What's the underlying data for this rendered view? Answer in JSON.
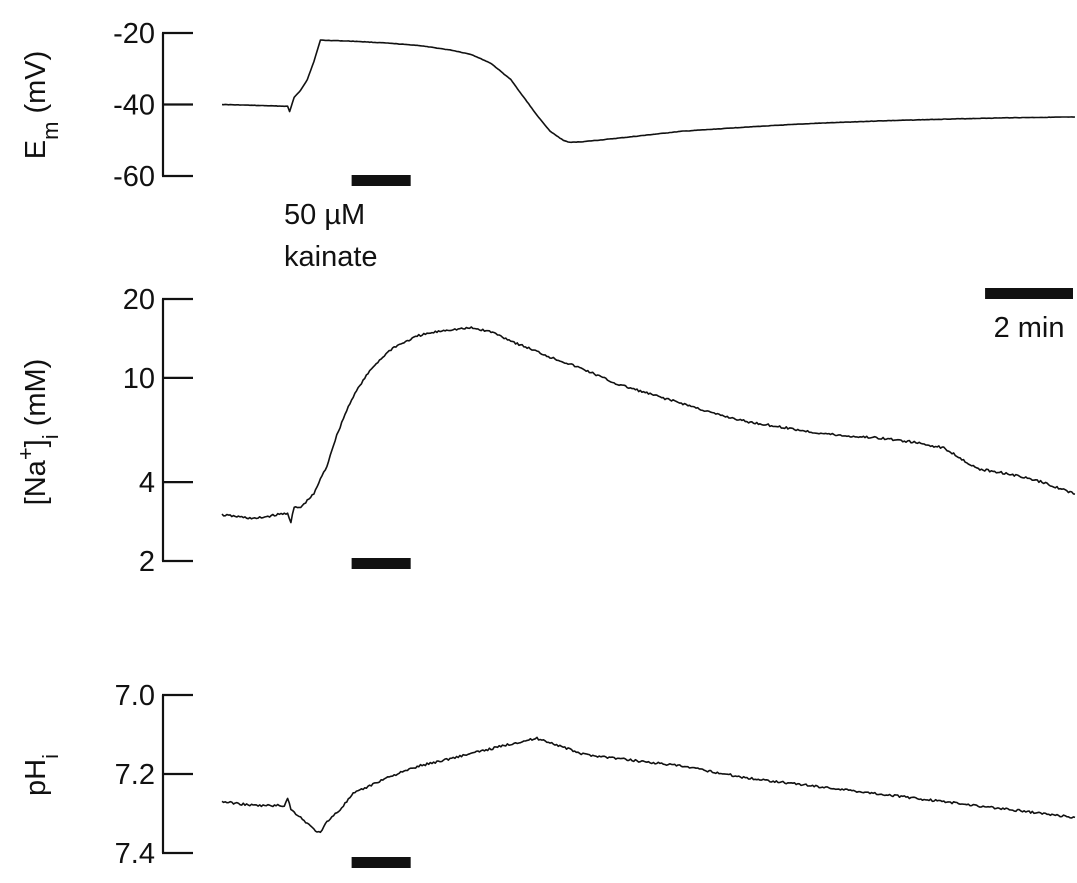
{
  "chart_data": [
    {
      "type": "line",
      "ylabel": "E",
      "ylabel_sub": "m",
      "ylabel_unit": " (mV)",
      "yticks": [
        "-20",
        "-40",
        "-60"
      ],
      "ytick_values": [
        -20,
        -40,
        -60
      ],
      "ylim": [
        -60,
        -20
      ],
      "xlim": [
        0,
        13
      ],
      "x_units": "min",
      "series": [
        {
          "x": [
            0,
            1.0,
            1.03,
            1.1,
            1.2,
            1.3,
            1.4,
            1.5,
            2.0,
            2.5,
            3.0,
            3.5,
            3.8,
            4.1,
            4.4,
            4.6,
            4.8,
            5.0,
            5.2,
            5.3,
            5.5,
            6.0,
            6.5,
            7.0,
            8.0,
            9.0,
            10.0,
            11.0,
            12.0,
            13.0
          ],
          "y": [
            -40.0,
            -40.5,
            -42.0,
            -38.0,
            -36.0,
            -33.0,
            -28.0,
            -22.0,
            -22.3,
            -22.8,
            -23.5,
            -24.8,
            -26.0,
            -28.5,
            -33.0,
            -38.0,
            -43.0,
            -47.5,
            -50.0,
            -50.6,
            -50.4,
            -49.5,
            -48.5,
            -47.5,
            -46.3,
            -45.3,
            -44.6,
            -44.1,
            -43.7,
            -43.5
          ]
        }
      ],
      "bar_label_line1": "50 µM",
      "bar_label_line2": "kainate",
      "stim_bar": [
        1.0,
        1.9
      ]
    },
    {
      "type": "line",
      "ylabel": "[Na",
      "ylabel_sup": "+",
      "ylabel_mid": "]",
      "ylabel_sub": "i",
      "ylabel_unit": " (mM)",
      "yscale": "log",
      "yticks": [
        "20",
        "10",
        "4",
        "2"
      ],
      "ytick_values": [
        20,
        10,
        4,
        2
      ],
      "ylim": [
        2,
        20
      ],
      "xlim": [
        0,
        13
      ],
      "series": [
        {
          "x": [
            0,
            0.5,
            1.0,
            1.05,
            1.1,
            1.2,
            1.4,
            1.6,
            1.8,
            2.0,
            2.3,
            2.6,
            3.0,
            3.4,
            3.8,
            4.1,
            4.5,
            5.0,
            5.5,
            6.0,
            6.5,
            7.0,
            7.5,
            8.0,
            8.5,
            9.0,
            9.5,
            10.0,
            10.5,
            11.0,
            11.5,
            12.0,
            12.5,
            13.0
          ],
          "y": [
            3.0,
            2.9,
            3.05,
            2.8,
            3.2,
            3.2,
            3.6,
            4.6,
            6.5,
            8.5,
            11.0,
            13.0,
            14.5,
            15.2,
            15.5,
            15.0,
            13.5,
            12.0,
            10.8,
            9.5,
            8.7,
            8.0,
            7.3,
            6.8,
            6.5,
            6.2,
            6.0,
            5.9,
            5.7,
            5.4,
            4.5,
            4.3,
            4.0,
            3.6
          ]
        }
      ],
      "stim_bar": [
        1.0,
        1.9
      ],
      "time_scale_bar_label": "2 min",
      "time_scale_bar_minutes": 2
    },
    {
      "type": "line",
      "ylabel": "pH",
      "ylabel_sub": "i",
      "ylabel_unit": "",
      "y_inverted": true,
      "yticks": [
        "7.0",
        "7.2",
        "7.4"
      ],
      "ytick_values": [
        7.0,
        7.2,
        7.4
      ],
      "ylim": [
        7.0,
        7.4
      ],
      "xlim": [
        0,
        13
      ],
      "series": [
        {
          "x": [
            0,
            0.5,
            0.95,
            1.0,
            1.05,
            1.2,
            1.4,
            1.5,
            1.6,
            1.8,
            2.0,
            2.5,
            3.0,
            3.5,
            4.0,
            4.5,
            4.8,
            5.0,
            5.5,
            6.0,
            6.5,
            7.0,
            8.0,
            9.0,
            10.0,
            11.0,
            12.0,
            13.0
          ],
          "y": [
            7.27,
            7.28,
            7.28,
            7.26,
            7.29,
            7.31,
            7.34,
            7.35,
            7.32,
            7.29,
            7.25,
            7.21,
            7.18,
            7.16,
            7.14,
            7.12,
            7.11,
            7.12,
            7.15,
            7.16,
            7.17,
            7.18,
            7.21,
            7.23,
            7.25,
            7.27,
            7.29,
            7.31
          ]
        }
      ],
      "stim_bar": [
        1.0,
        1.9
      ]
    }
  ]
}
